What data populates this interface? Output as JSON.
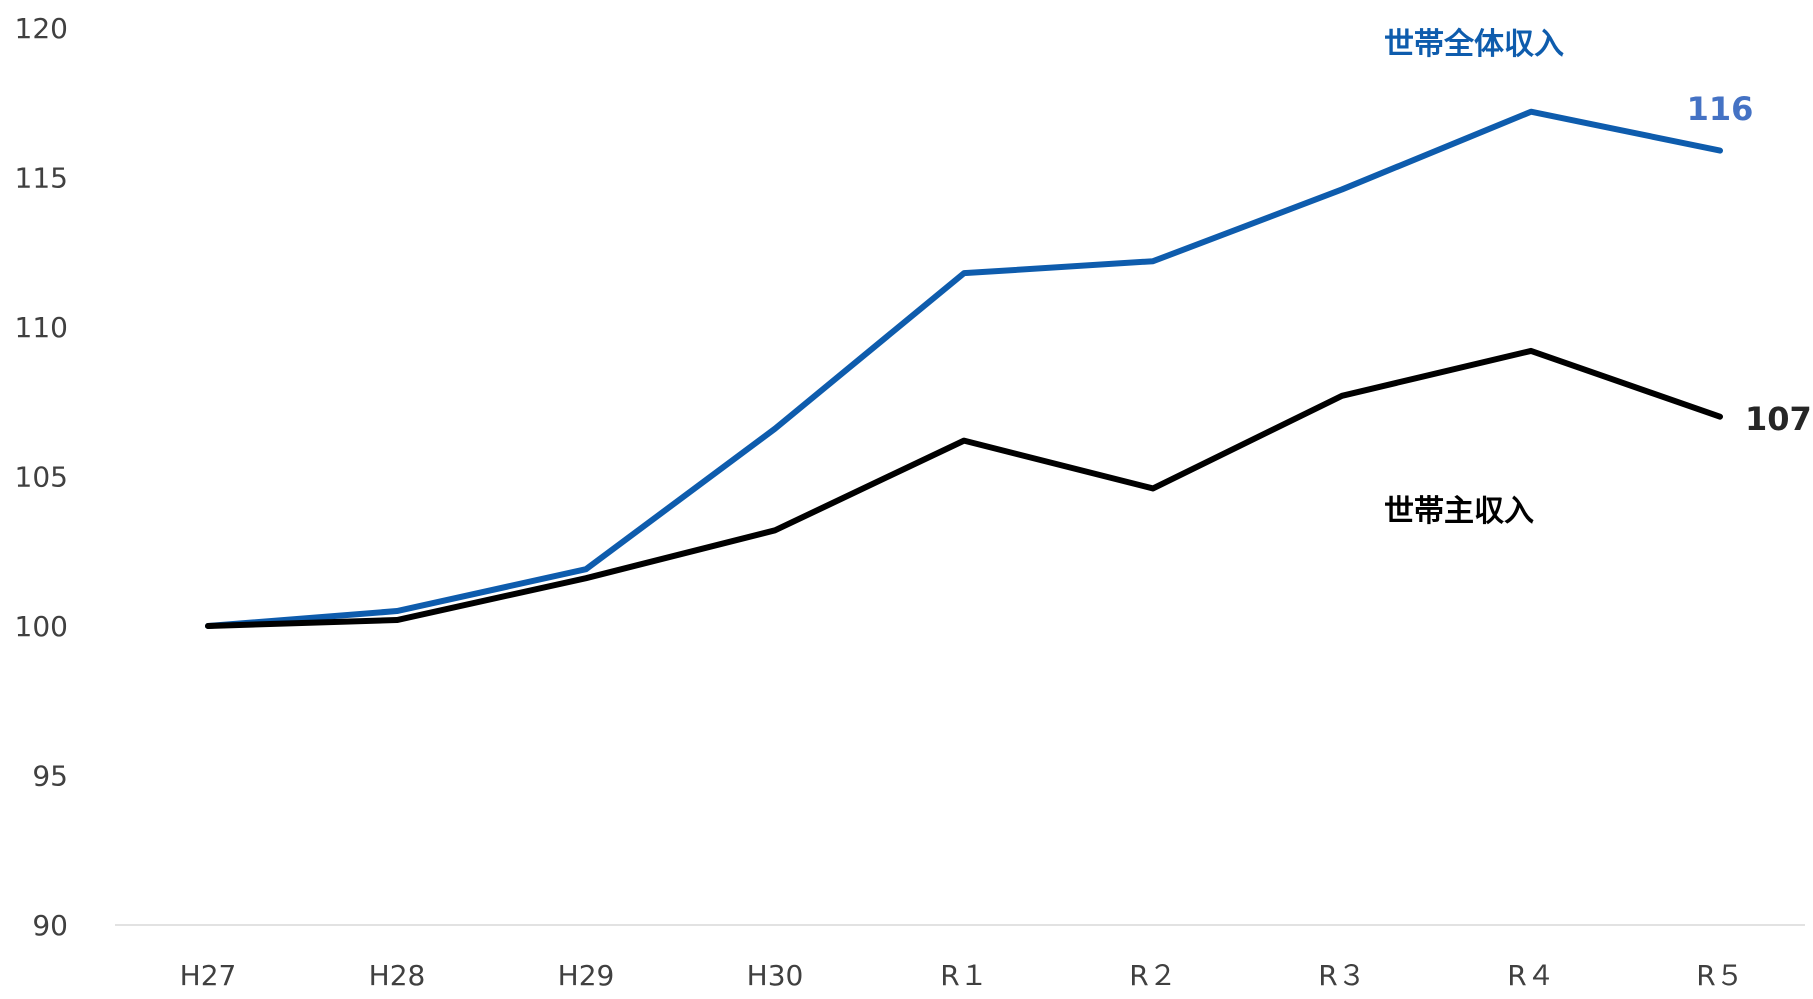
{
  "chart_data": {
    "type": "line",
    "title": "",
    "xlabel": "",
    "ylabel": "",
    "categories": [
      "H27",
      "H28",
      "H29",
      "H30",
      "R１",
      "R２",
      "R３",
      "R４",
      "R５"
    ],
    "ylim": [
      90,
      120
    ],
    "yticks": [
      90,
      95,
      100,
      105,
      110,
      115,
      120
    ],
    "grid": false,
    "legend": "none",
    "series": [
      {
        "name": "世帯全体収入",
        "color": "#0E5CAD",
        "label_color": "#0E5CAD",
        "end_label_color": "#4472C4",
        "values": [
          100,
          100.5,
          101.9,
          106.6,
          111.8,
          112.2,
          114.6,
          117.2,
          115.9
        ],
        "end_label": "116"
      },
      {
        "name": "世帯主収入",
        "color": "#000000",
        "label_color": "#000000",
        "end_label_color": "#262626",
        "values": [
          100,
          100.2,
          101.6,
          103.2,
          106.2,
          104.6,
          107.7,
          109.2,
          107.0
        ],
        "end_label": "107"
      }
    ]
  }
}
